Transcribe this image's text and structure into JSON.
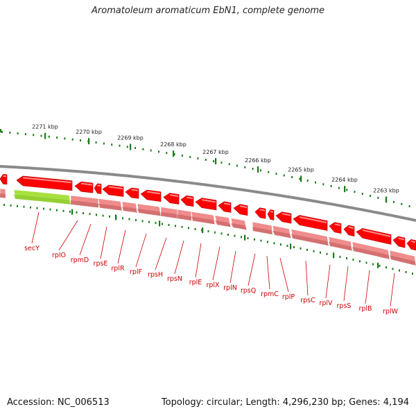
{
  "title": "Aromatoleum aromaticum EbN1, complete genome",
  "footer": {
    "accession": "Accession: NC_006513",
    "summary": "Topology: circular; Length: 4,296,230 bp; Genes: 4,194"
  },
  "colors": {
    "gene_fill": "#ff0000",
    "gene_highlight": "#ffb0b0",
    "gene_shadow": "#b00000",
    "highlight_band": "#a8e040",
    "cds_band": "#f08c8c",
    "cds_band_dark": "#c86464",
    "backbone": "#8a8a8a",
    "tick": "#1a7a1a",
    "label": "#cc0000"
  },
  "kbp_labels": [
    "2271 kbp",
    "2270 kbp",
    "2269 kbp",
    "2268 kbp",
    "2267 kbp",
    "2266 kbp",
    "2265 kbp",
    "2264 kbp",
    "2263 kbp"
  ],
  "gene_labels": [
    "secY",
    "rplO",
    "rpmD",
    "rpsE",
    "rplR",
    "rplF",
    "rpsH",
    "rpsN",
    "rplE",
    "rplX",
    "rplN",
    "rpsQ",
    "rpmC",
    "rplP",
    "rpsC",
    "rplV",
    "rpsS",
    "rplB",
    "rplW"
  ]
}
